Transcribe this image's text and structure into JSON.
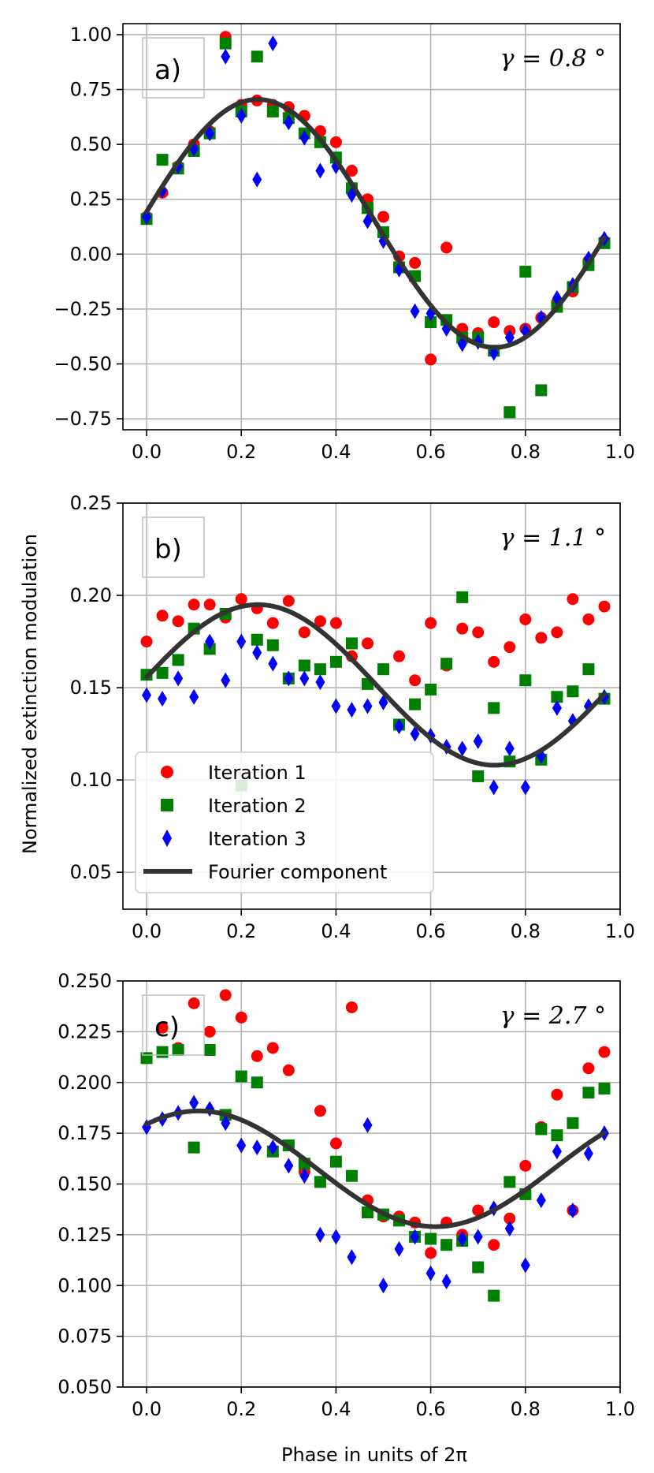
{
  "figure": {
    "ylabel": "Normalized extinction modulation",
    "xlabel": "Phase in units of  2π"
  },
  "legend": {
    "entries": [
      "Iteration 1",
      "Iteration 2",
      "Iteration 3",
      "Fourier component"
    ],
    "colors": [
      "#ff0000",
      "#008000",
      "#0000ff",
      "#333333"
    ],
    "location": "lower-left of panel b"
  },
  "chart_data": [
    {
      "type": "scatter",
      "panel_label": "a)",
      "annotation": "γ = 0.8 °",
      "xlim": [
        -0.05,
        1.0
      ],
      "ylim": [
        -0.8,
        1.05
      ],
      "xticks": [
        0.0,
        0.2,
        0.4,
        0.6,
        0.8,
        1.0
      ],
      "xtick_labels": [
        "0.0",
        "0.2",
        "0.4",
        "0.6",
        "0.8",
        "1.0"
      ],
      "yticks": [
        -0.75,
        -0.5,
        -0.25,
        0.0,
        0.25,
        0.5,
        0.75,
        1.0
      ],
      "ytick_labels": [
        "−0.75",
        "−0.50",
        "−0.25",
        "0.00",
        "0.25",
        "0.50",
        "0.75",
        "1.00"
      ],
      "grid": true,
      "x": [
        0.0,
        0.0333,
        0.0667,
        0.1,
        0.1333,
        0.1667,
        0.2,
        0.2333,
        0.2667,
        0.3,
        0.3333,
        0.3667,
        0.4,
        0.4333,
        0.4667,
        0.5,
        0.5333,
        0.5667,
        0.6,
        0.6333,
        0.6667,
        0.7,
        0.7333,
        0.7667,
        0.8,
        0.8333,
        0.8667,
        0.9,
        0.9333,
        0.9667
      ],
      "series": [
        {
          "name": "Iteration 1",
          "marker": "circle",
          "values": [
            0.17,
            0.28,
            0.4,
            0.5,
            0.56,
            0.99,
            0.68,
            0.7,
            0.68,
            0.67,
            0.63,
            0.56,
            0.51,
            0.38,
            0.25,
            0.17,
            -0.01,
            -0.04,
            -0.48,
            0.03,
            -0.34,
            -0.36,
            -0.31,
            -0.35,
            -0.34,
            -0.29,
            -0.22,
            -0.17,
            -0.03,
            0.06
          ]
        },
        {
          "name": "Iteration 2",
          "marker": "square",
          "values": [
            0.16,
            0.43,
            0.39,
            0.47,
            0.55,
            0.96,
            0.65,
            0.9,
            0.65,
            0.62,
            0.55,
            0.51,
            0.44,
            0.3,
            0.21,
            0.1,
            -0.06,
            -0.1,
            -0.31,
            -0.3,
            -0.38,
            -0.38,
            -0.44,
            -0.72,
            -0.08,
            -0.62,
            -0.24,
            -0.15,
            -0.05,
            0.05
          ]
        },
        {
          "name": "Iteration 3",
          "marker": "diamond",
          "values": [
            0.17,
            0.29,
            0.4,
            0.48,
            0.55,
            0.9,
            0.63,
            0.34,
            0.96,
            0.6,
            0.53,
            0.38,
            0.4,
            0.27,
            0.15,
            0.06,
            -0.07,
            -0.26,
            -0.27,
            -0.34,
            -0.41,
            -0.4,
            -0.45,
            -0.38,
            -0.35,
            -0.29,
            -0.2,
            -0.14,
            -0.02,
            0.07
          ]
        },
        {
          "name": "Fourier component",
          "marker": "line",
          "mean": 0.14,
          "amplitude": 0.565,
          "phase_of_max": 0.235
        }
      ]
    },
    {
      "type": "scatter",
      "panel_label": "b)",
      "annotation": "γ = 1.1 °",
      "xlim": [
        -0.05,
        1.0
      ],
      "ylim": [
        0.03,
        0.25
      ],
      "xticks": [
        0.0,
        0.2,
        0.4,
        0.6,
        0.8,
        1.0
      ],
      "xtick_labels": [
        "0.0",
        "0.2",
        "0.4",
        "0.6",
        "0.8",
        "1.0"
      ],
      "yticks": [
        0.05,
        0.1,
        0.15,
        0.2,
        0.25
      ],
      "ytick_labels": [
        "0.05",
        "0.10",
        "0.15",
        "0.20",
        "0.25"
      ],
      "grid": true,
      "x": [
        0.0,
        0.0333,
        0.0667,
        0.1,
        0.1333,
        0.1667,
        0.2,
        0.2333,
        0.2667,
        0.3,
        0.3333,
        0.3667,
        0.4,
        0.4333,
        0.4667,
        0.5,
        0.5333,
        0.5667,
        0.6,
        0.6333,
        0.6667,
        0.7,
        0.7333,
        0.7667,
        0.8,
        0.8333,
        0.8667,
        0.9,
        0.9333,
        0.9667
      ],
      "series": [
        {
          "name": "Iteration 1",
          "marker": "circle",
          "values": [
            0.175,
            0.189,
            0.186,
            0.195,
            0.195,
            0.188,
            0.198,
            0.193,
            0.185,
            0.197,
            0.18,
            0.186,
            0.185,
            0.167,
            0.174,
            0.16,
            0.167,
            0.154,
            0.185,
            0.162,
            0.182,
            0.18,
            0.164,
            0.172,
            0.187,
            0.177,
            0.18,
            0.198,
            0.187,
            0.194
          ]
        },
        {
          "name": "Iteration 2",
          "marker": "square",
          "values": [
            0.157,
            0.158,
            0.165,
            0.182,
            0.171,
            0.19,
            0.097,
            0.176,
            0.173,
            0.155,
            0.162,
            0.16,
            0.164,
            0.174,
            0.152,
            0.16,
            0.13,
            0.141,
            0.149,
            0.163,
            0.199,
            0.102,
            0.139,
            0.11,
            0.154,
            0.111,
            0.145,
            0.148,
            0.16,
            0.144
          ]
        },
        {
          "name": "Iteration 3",
          "marker": "diamond",
          "values": [
            0.146,
            0.144,
            0.155,
            0.145,
            0.175,
            0.154,
            0.175,
            0.169,
            0.163,
            0.155,
            0.155,
            0.153,
            0.14,
            0.138,
            0.14,
            0.142,
            0.129,
            0.125,
            0.124,
            0.118,
            0.117,
            0.121,
            0.096,
            0.117,
            0.096,
            0.113,
            0.139,
            0.132,
            0.14,
            0.145
          ]
        },
        {
          "name": "Fourier component",
          "marker": "line",
          "mean": 0.1515,
          "amplitude": 0.0435,
          "phase_of_max": 0.235
        }
      ]
    },
    {
      "type": "scatter",
      "panel_label": "c)",
      "annotation": "γ = 2.7 °",
      "xlim": [
        -0.05,
        1.0
      ],
      "ylim": [
        0.05,
        0.25
      ],
      "xticks": [
        0.0,
        0.2,
        0.4,
        0.6,
        0.8,
        1.0
      ],
      "xtick_labels": [
        "0.0",
        "0.2",
        "0.4",
        "0.6",
        "0.8",
        "1.0"
      ],
      "yticks": [
        0.05,
        0.075,
        0.1,
        0.125,
        0.15,
        0.175,
        0.2,
        0.225,
        0.25
      ],
      "ytick_labels": [
        "0.050",
        "0.075",
        "0.100",
        "0.125",
        "0.150",
        "0.175",
        "0.200",
        "0.225",
        "0.250"
      ],
      "grid": true,
      "x": [
        0.0,
        0.0333,
        0.0667,
        0.1,
        0.1333,
        0.1667,
        0.2,
        0.2333,
        0.2667,
        0.3,
        0.3333,
        0.3667,
        0.4,
        0.4333,
        0.4667,
        0.5,
        0.5333,
        0.5667,
        0.6,
        0.6333,
        0.6667,
        0.7,
        0.7333,
        0.7667,
        0.8,
        0.8333,
        0.8667,
        0.9,
        0.9333,
        0.9667
      ],
      "series": [
        {
          "name": "Iteration 1",
          "marker": "circle",
          "values": [
            0.212,
            0.227,
            0.217,
            0.239,
            0.225,
            0.243,
            0.232,
            0.213,
            0.217,
            0.206,
            0.156,
            0.186,
            0.17,
            0.237,
            0.142,
            0.134,
            0.134,
            0.131,
            0.116,
            0.131,
            0.125,
            0.137,
            0.12,
            0.133,
            0.159,
            0.178,
            0.194,
            0.137,
            0.207,
            0.215
          ]
        },
        {
          "name": "Iteration 2",
          "marker": "square",
          "values": [
            0.212,
            0.215,
            0.216,
            0.168,
            0.216,
            0.184,
            0.203,
            0.2,
            0.166,
            0.169,
            0.16,
            0.151,
            0.161,
            0.154,
            0.136,
            0.135,
            0.132,
            0.124,
            0.123,
            0.12,
            0.122,
            0.109,
            0.095,
            0.151,
            0.145,
            0.177,
            0.174,
            0.18,
            0.195,
            0.197
          ]
        },
        {
          "name": "Iteration 3",
          "marker": "diamond",
          "values": [
            0.178,
            0.182,
            0.185,
            0.19,
            0.187,
            0.18,
            0.169,
            0.168,
            0.168,
            0.159,
            0.154,
            0.125,
            0.124,
            0.114,
            0.179,
            0.1,
            0.118,
            0.124,
            0.106,
            0.102,
            0.123,
            0.124,
            0.138,
            0.128,
            0.11,
            0.142,
            0.166,
            0.137,
            0.165,
            0.175
          ]
        },
        {
          "name": "Fourier component",
          "marker": "line",
          "mean": 0.1575,
          "amplitude": 0.0285,
          "phase_of_max": 0.11
        }
      ]
    }
  ]
}
